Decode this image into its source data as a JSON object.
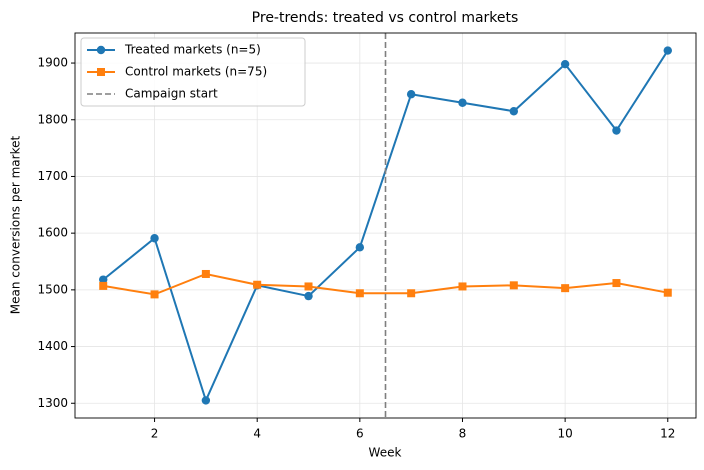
{
  "chart_data": {
    "type": "line",
    "title": "Pre-trends: treated vs control markets",
    "x_label": "Week",
    "y_label": "Mean conversions per market",
    "x": [
      1,
      2,
      3,
      4,
      5,
      6,
      7,
      8,
      9,
      10,
      11,
      12
    ],
    "series": [
      {
        "name": "Treated markets (n=5)",
        "color": "#1f77b4",
        "marker": "circle",
        "values": [
          1518,
          1591,
          1305,
          1508,
          1489,
          1575,
          1845,
          1830,
          1815,
          1898,
          1781,
          1922
        ]
      },
      {
        "name": "Control markets (n=75)",
        "color": "#ff7f0e",
        "marker": "square",
        "values": [
          1507,
          1492,
          1528,
          1509,
          1506,
          1494,
          1494,
          1506,
          1508,
          1503,
          1512,
          1495
        ]
      }
    ],
    "vline": {
      "x": 6.5,
      "label": "Campaign start",
      "color": "#7f7f7f",
      "style": "dashed"
    },
    "xlim": [
      0.45,
      12.55
    ],
    "ylim": [
      1274,
      1953
    ],
    "xticks": [
      2,
      4,
      6,
      8,
      10,
      12
    ],
    "yticks": [
      1300,
      1400,
      1500,
      1600,
      1700,
      1800,
      1900
    ],
    "grid": true,
    "legend": "upper left"
  }
}
